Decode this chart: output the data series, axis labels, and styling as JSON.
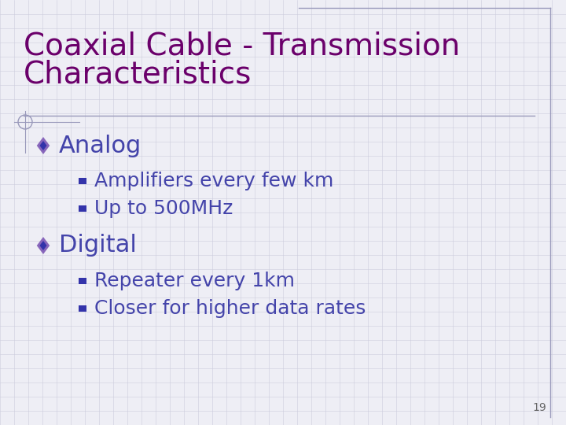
{
  "title_line1": "Coaxial Cable - Transmission",
  "title_line2": "Characteristics",
  "title_color": "#6B006B",
  "title_fontsize": 28,
  "background_color": "#EEEEF5",
  "grid_color": "#CCCCDD",
  "bullet1_label": "Analog",
  "bullet_color": "#4444AA",
  "bullet_fontsize": 22,
  "bullet2_label": "Digital",
  "sub_bullet_color": "#4444AA",
  "sub_bullet_fontsize": 18,
  "sub_bullets_analog": [
    "Amplifiers every few km",
    "Up to 500MHz"
  ],
  "sub_bullets_digital": [
    "Repeater every 1km",
    "Closer for higher data rates"
  ],
  "diamond_color_outer": "#8866BB",
  "diamond_color_inner": "#3333AA",
  "square_color": "#3333AA",
  "page_number": "19",
  "page_num_color": "#666666",
  "page_num_fontsize": 10,
  "border_color": "#9999BB",
  "title_underline_color": "#9999BB",
  "circle_color": "#9999BB"
}
